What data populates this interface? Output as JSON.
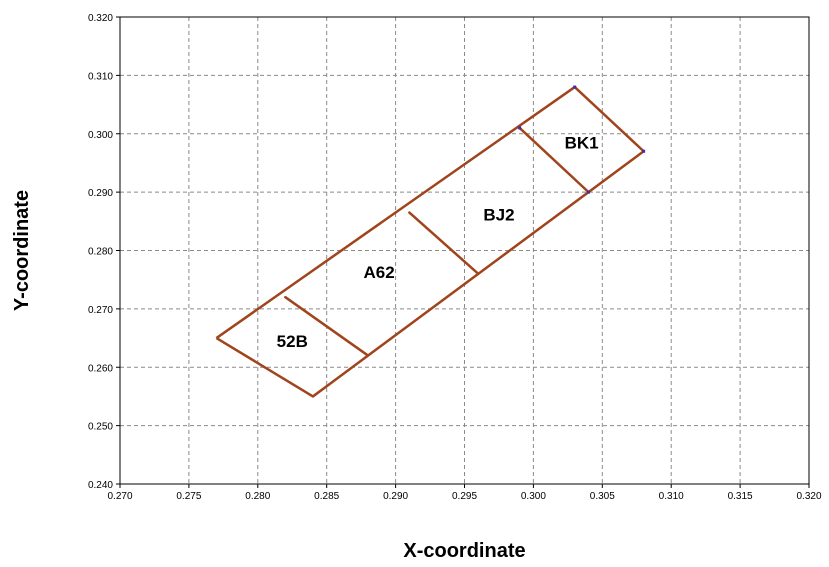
{
  "chart_data": {
    "type": "line",
    "title": "",
    "xlabel": "X-coordinate",
    "ylabel": "Y-coordinate",
    "xlim": [
      0.27,
      0.32
    ],
    "ylim": [
      0.24,
      0.32
    ],
    "xticks": [
      "0.270",
      "0.275",
      "0.280",
      "0.285",
      "0.290",
      "0.295",
      "0.300",
      "0.305",
      "0.310",
      "0.315",
      "0.320"
    ],
    "yticks": [
      "0.240",
      "0.250",
      "0.260",
      "0.270",
      "0.280",
      "0.290",
      "0.300",
      "0.310",
      "0.320"
    ],
    "grid": true,
    "line_color": "#a0441c",
    "marker_color": "#3a2fb0",
    "outline": [
      [
        0.277,
        0.265
      ],
      [
        0.303,
        0.308
      ],
      [
        0.308,
        0.297
      ],
      [
        0.284,
        0.255
      ],
      [
        0.277,
        0.265
      ]
    ],
    "dividers": [
      [
        [
          0.282,
          0.272
        ],
        [
          0.288,
          0.262
        ]
      ],
      [
        [
          0.291,
          0.2865
        ],
        [
          0.296,
          0.276
        ]
      ],
      [
        [
          0.299,
          0.301
        ],
        [
          0.304,
          0.29
        ]
      ]
    ],
    "markers": [
      [
        0.303,
        0.308
      ],
      [
        0.308,
        0.297
      ],
      [
        0.299,
        0.301
      ],
      [
        0.304,
        0.29
      ]
    ],
    "regions": [
      {
        "label": "52B",
        "x": 0.2825,
        "y": 0.2645
      },
      {
        "label": "A62",
        "x": 0.2888,
        "y": 0.2763
      },
      {
        "label": "BJ2",
        "x": 0.2975,
        "y": 0.2862
      },
      {
        "label": "BK1",
        "x": 0.3035,
        "y": 0.2985
      }
    ]
  }
}
